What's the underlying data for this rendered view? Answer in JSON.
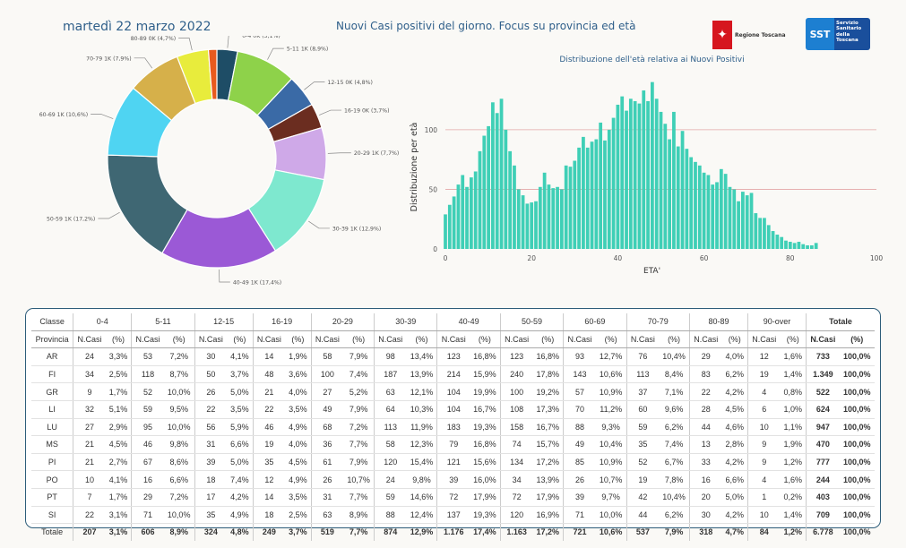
{
  "header": {
    "date": "martedì 22 marzo 2022",
    "title": "Nuovi Casi positivi del giorno. Focus su provincia ed età",
    "logo_regione": "Regione Toscana",
    "logo_sst": "SST",
    "logo_sst_text": "Servizio Sanitario della Toscana"
  },
  "chart_data": [
    {
      "type": "pie",
      "donut": true,
      "categories": [
        "0-4",
        "5-11",
        "12-15",
        "16-19",
        "20-29",
        "30-39",
        "40-49",
        "50-59",
        "60-69",
        "70-79",
        "80-89",
        "90-over"
      ],
      "values": [
        207,
        606,
        324,
        249,
        519,
        874,
        1176,
        1163,
        721,
        537,
        318,
        84
      ],
      "labels": [
        "0-4 0K (3,1%)",
        "5-11 1K (8,9%)",
        "12-15 0K (4,8%)",
        "16-19 0K (3,7%)",
        "20-29 1K (7,7%)",
        "30-39 1K (12,9%)",
        "40-49 1K (17,4%)",
        "50-59 1K (17,2%)",
        "60-69 1K (10,6%)",
        "70-79 1K (7,9%)",
        "80-89 0K (4,7%)",
        ""
      ],
      "colors": [
        "#1e4d66",
        "#8ed24a",
        "#3a6aa6",
        "#6b2d20",
        "#cfa9e8",
        "#7ee8cf",
        "#9b59d6",
        "#3f6773",
        "#4fd4f2",
        "#d6b04a",
        "#e8ec3c",
        "#e85a1e"
      ]
    },
    {
      "type": "bar",
      "title": "Distribuzione dell'età relativa ai Nuovi Positivi",
      "xlabel": "ETA'",
      "ylabel": "Distribuzione per età",
      "xlim": [
        0,
        100
      ],
      "ylim": [
        0,
        145
      ],
      "xticks": [
        0,
        20,
        40,
        60,
        80,
        100
      ],
      "yticks": [
        0,
        50,
        100
      ],
      "color": "#3fcfb6",
      "values": [
        29,
        37,
        44,
        54,
        62,
        52,
        60,
        65,
        82,
        95,
        103,
        123,
        114,
        126,
        100,
        82,
        70,
        50,
        45,
        38,
        39,
        40,
        52,
        64,
        54,
        51,
        52,
        50,
        70,
        69,
        74,
        85,
        94,
        85,
        90,
        92,
        106,
        91,
        100,
        110,
        121,
        128,
        116,
        126,
        124,
        122,
        133,
        124,
        140,
        126,
        115,
        105,
        92,
        115,
        86,
        99,
        84,
        77,
        73,
        70,
        64,
        62,
        54,
        56,
        67,
        63,
        52,
        50,
        40,
        48,
        45,
        47,
        30,
        26,
        26,
        20,
        15,
        12,
        10,
        7,
        6,
        5,
        6,
        4,
        3,
        3,
        5
      ]
    }
  ],
  "table": {
    "group_headers": [
      "Classe",
      "0-4",
      "5-11",
      "12-15",
      "16-19",
      "20-29",
      "30-39",
      "40-49",
      "50-59",
      "60-69",
      "70-79",
      "80-89",
      "90-over",
      "Totale"
    ],
    "sub_headers": [
      "Provincia",
      "N.Casi",
      "(%)",
      "N.Casi",
      "(%)",
      "N.Casi",
      "(%)",
      "N.Casi",
      "(%)",
      "N.Casi",
      "(%)",
      "N.Casi",
      "(%)",
      "N.Casi",
      "(%)",
      "N.Casi",
      "(%)",
      "N.Casi",
      "(%)",
      "N.Casi",
      "(%)",
      "N.Casi",
      "(%)",
      "N.Casi",
      "(%)",
      "N.Casi",
      "(%)"
    ],
    "rows": [
      [
        "AR",
        "24",
        "3,3%",
        "53",
        "7,2%",
        "30",
        "4,1%",
        "14",
        "1,9%",
        "58",
        "7,9%",
        "98",
        "13,4%",
        "123",
        "16,8%",
        "123",
        "16,8%",
        "93",
        "12,7%",
        "76",
        "10,4%",
        "29",
        "4,0%",
        "12",
        "1,6%",
        "733",
        "100,0%"
      ],
      [
        "FI",
        "34",
        "2,5%",
        "118",
        "8,7%",
        "50",
        "3,7%",
        "48",
        "3,6%",
        "100",
        "7,4%",
        "187",
        "13,9%",
        "214",
        "15,9%",
        "240",
        "17,8%",
        "143",
        "10,6%",
        "113",
        "8,4%",
        "83",
        "6,2%",
        "19",
        "1,4%",
        "1.349",
        "100,0%"
      ],
      [
        "GR",
        "9",
        "1,7%",
        "52",
        "10,0%",
        "26",
        "5,0%",
        "21",
        "4,0%",
        "27",
        "5,2%",
        "63",
        "12,1%",
        "104",
        "19,9%",
        "100",
        "19,2%",
        "57",
        "10,9%",
        "37",
        "7,1%",
        "22",
        "4,2%",
        "4",
        "0,8%",
        "522",
        "100,0%"
      ],
      [
        "LI",
        "32",
        "5,1%",
        "59",
        "9,5%",
        "22",
        "3,5%",
        "22",
        "3,5%",
        "49",
        "7,9%",
        "64",
        "10,3%",
        "104",
        "16,7%",
        "108",
        "17,3%",
        "70",
        "11,2%",
        "60",
        "9,6%",
        "28",
        "4,5%",
        "6",
        "1,0%",
        "624",
        "100,0%"
      ],
      [
        "LU",
        "27",
        "2,9%",
        "95",
        "10,0%",
        "56",
        "5,9%",
        "46",
        "4,9%",
        "68",
        "7,2%",
        "113",
        "11,9%",
        "183",
        "19,3%",
        "158",
        "16,7%",
        "88",
        "9,3%",
        "59",
        "6,2%",
        "44",
        "4,6%",
        "10",
        "1,1%",
        "947",
        "100,0%"
      ],
      [
        "MS",
        "21",
        "4,5%",
        "46",
        "9,8%",
        "31",
        "6,6%",
        "19",
        "4,0%",
        "36",
        "7,7%",
        "58",
        "12,3%",
        "79",
        "16,8%",
        "74",
        "15,7%",
        "49",
        "10,4%",
        "35",
        "7,4%",
        "13",
        "2,8%",
        "9",
        "1,9%",
        "470",
        "100,0%"
      ],
      [
        "PI",
        "21",
        "2,7%",
        "67",
        "8,6%",
        "39",
        "5,0%",
        "35",
        "4,5%",
        "61",
        "7,9%",
        "120",
        "15,4%",
        "121",
        "15,6%",
        "134",
        "17,2%",
        "85",
        "10,9%",
        "52",
        "6,7%",
        "33",
        "4,2%",
        "9",
        "1,2%",
        "777",
        "100,0%"
      ],
      [
        "PO",
        "10",
        "4,1%",
        "16",
        "6,6%",
        "18",
        "7,4%",
        "12",
        "4,9%",
        "26",
        "10,7%",
        "24",
        "9,8%",
        "39",
        "16,0%",
        "34",
        "13,9%",
        "26",
        "10,7%",
        "19",
        "7,8%",
        "16",
        "6,6%",
        "4",
        "1,6%",
        "244",
        "100,0%"
      ],
      [
        "PT",
        "7",
        "1,7%",
        "29",
        "7,2%",
        "17",
        "4,2%",
        "14",
        "3,5%",
        "31",
        "7,7%",
        "59",
        "14,6%",
        "72",
        "17,9%",
        "72",
        "17,9%",
        "39",
        "9,7%",
        "42",
        "10,4%",
        "20",
        "5,0%",
        "1",
        "0,2%",
        "403",
        "100,0%"
      ],
      [
        "SI",
        "22",
        "3,1%",
        "71",
        "10,0%",
        "35",
        "4,9%",
        "18",
        "2,5%",
        "63",
        "8,9%",
        "88",
        "12,4%",
        "137",
        "19,3%",
        "120",
        "16,9%",
        "71",
        "10,0%",
        "44",
        "6,2%",
        "30",
        "4,2%",
        "10",
        "1,4%",
        "709",
        "100,0%"
      ]
    ],
    "total": [
      "Totale",
      "207",
      "3,1%",
      "606",
      "8,9%",
      "324",
      "4,8%",
      "249",
      "3,7%",
      "519",
      "7,7%",
      "874",
      "12,9%",
      "1.176",
      "17,4%",
      "1.163",
      "17,2%",
      "721",
      "10,6%",
      "537",
      "7,9%",
      "318",
      "4,7%",
      "84",
      "1,2%",
      "6.778",
      "100,0%"
    ]
  }
}
